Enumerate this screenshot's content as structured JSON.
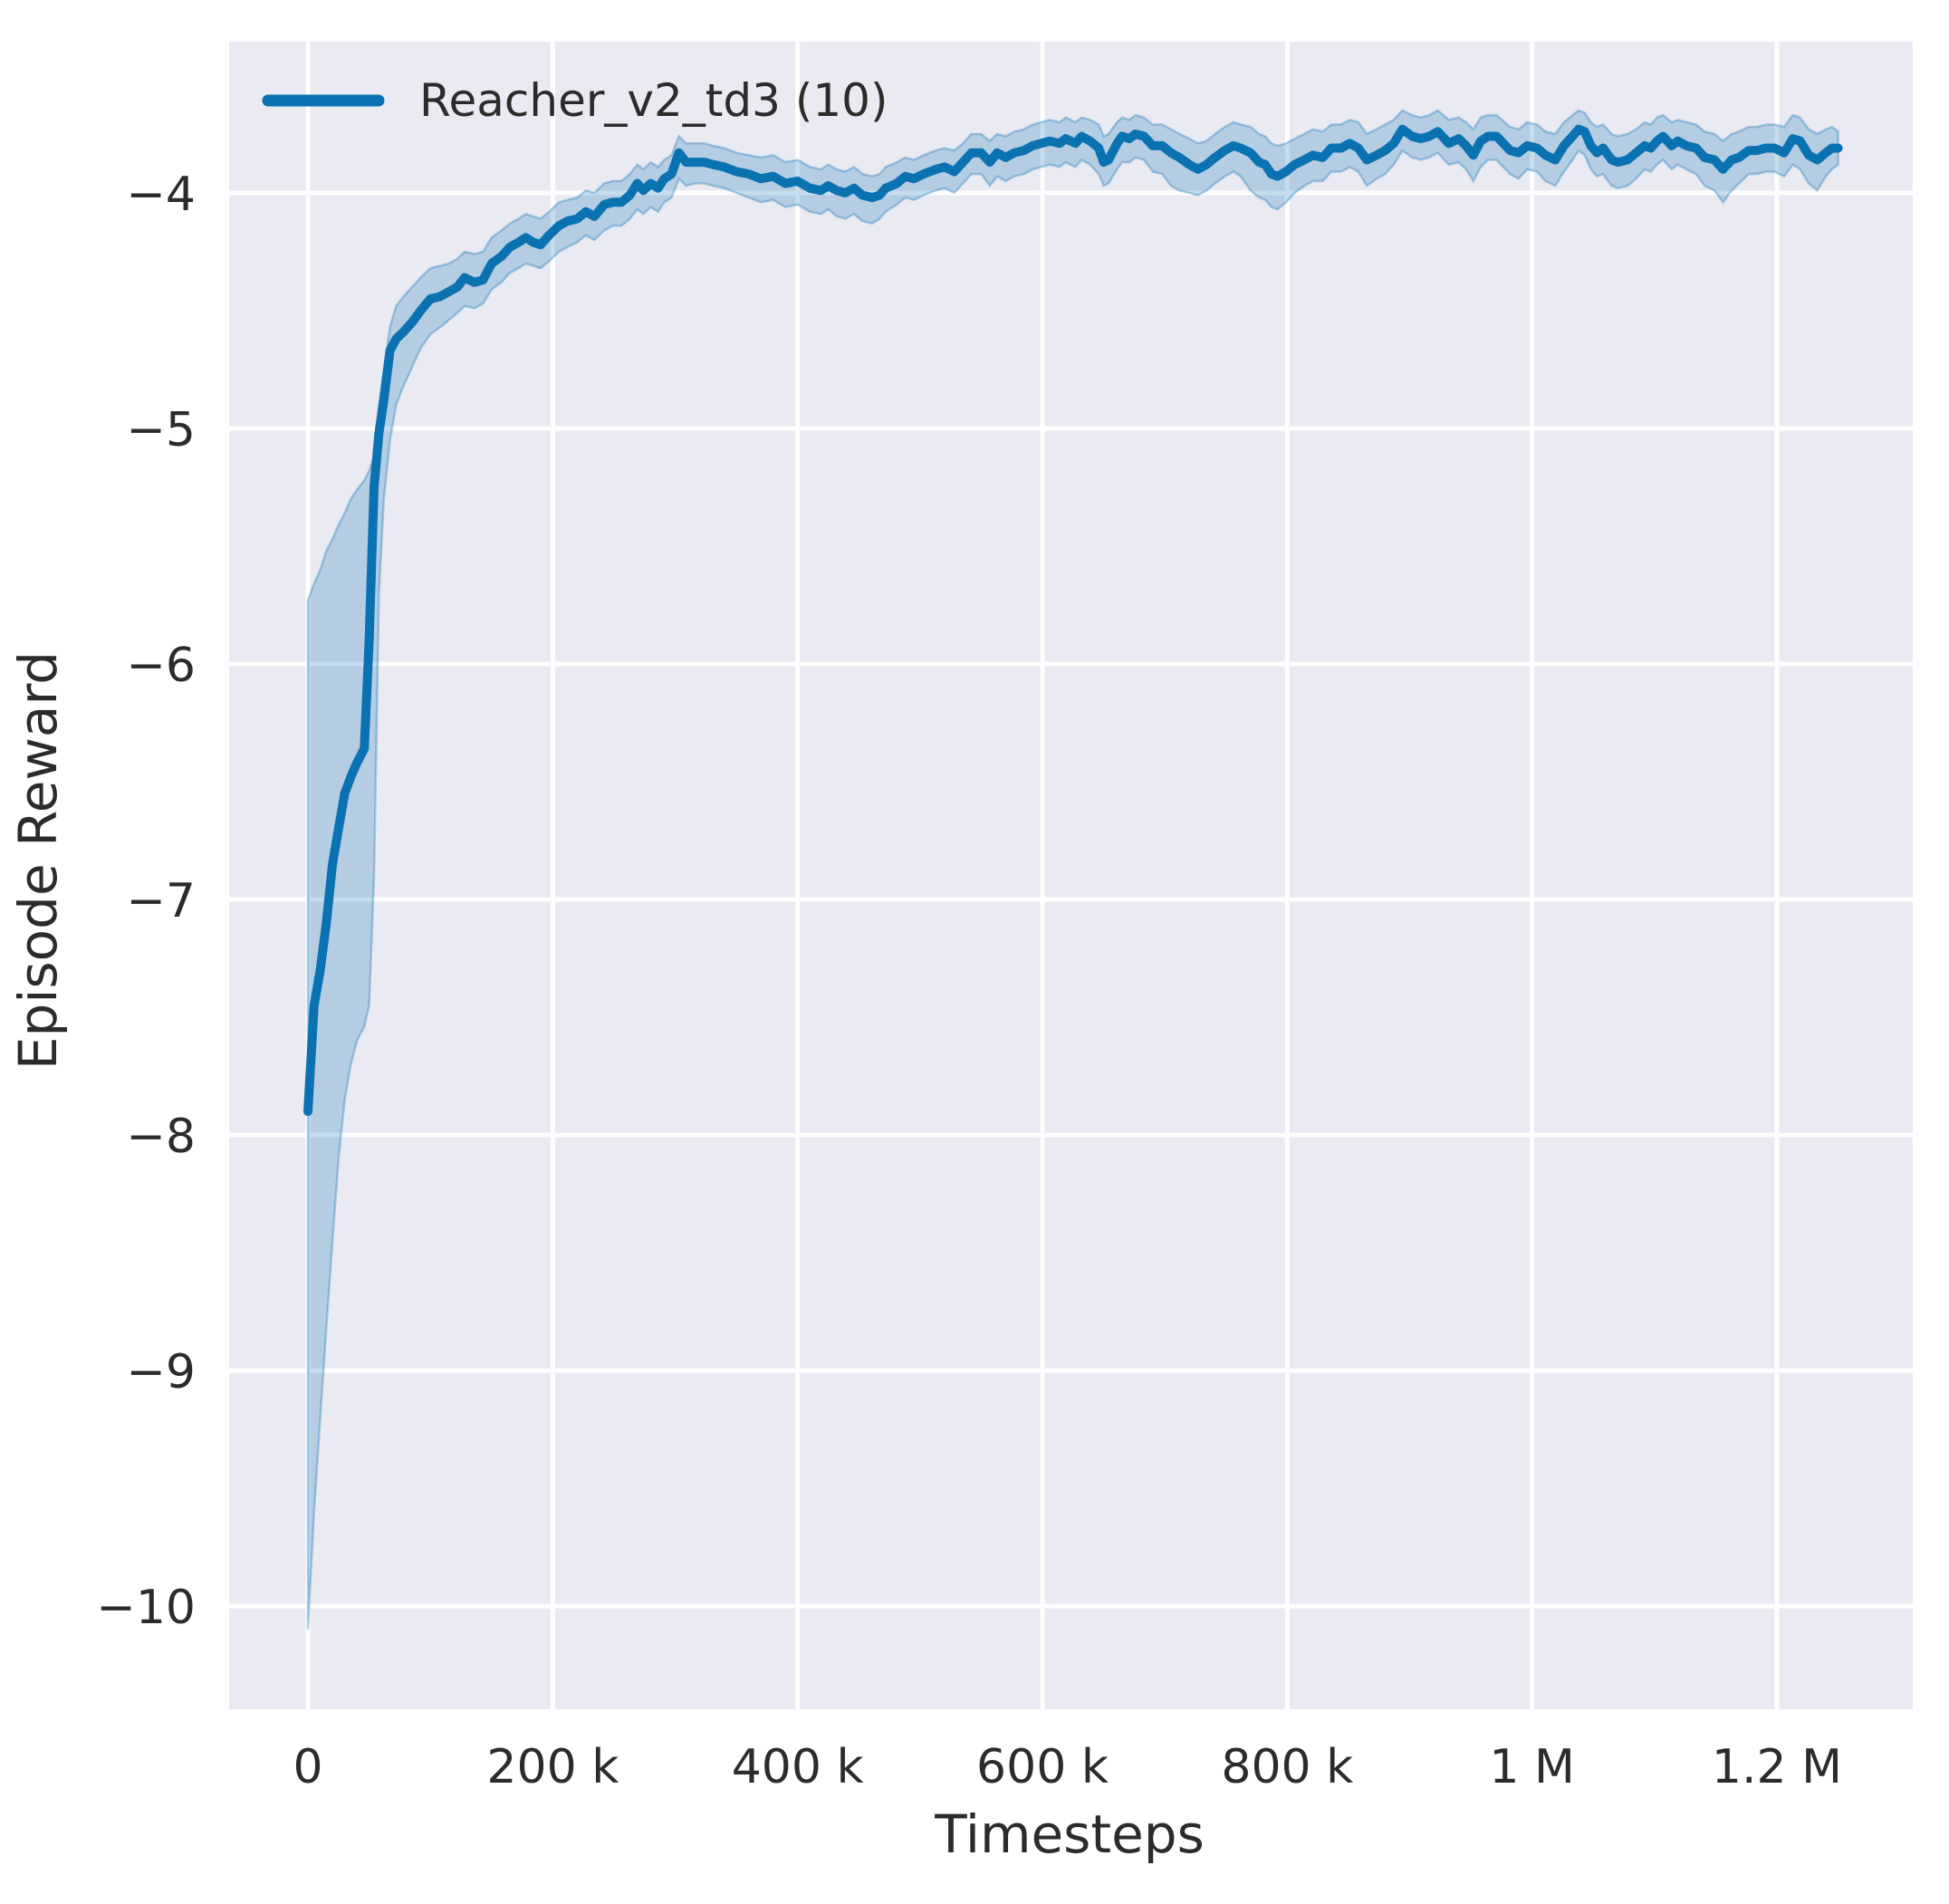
{
  "legend": {
    "label": "Reacher_v2_td3 (10)"
  },
  "axes": {
    "xlabel": "Timesteps",
    "ylabel": "Episode Reward",
    "x_ticks": [
      {
        "v": 0,
        "label": "0"
      },
      {
        "v": 200,
        "label": "200 k"
      },
      {
        "v": 400,
        "label": "400 k"
      },
      {
        "v": 600,
        "label": "600 k"
      },
      {
        "v": 800,
        "label": "800 k"
      },
      {
        "v": 1000,
        "label": "1 M"
      },
      {
        "v": 1200,
        "label": "1.2 M"
      }
    ],
    "y_ticks": [
      {
        "v": -4,
        "label": "−4"
      },
      {
        "v": -5,
        "label": "−5"
      },
      {
        "v": -6,
        "label": "−6"
      },
      {
        "v": -7,
        "label": "−7"
      },
      {
        "v": -8,
        "label": "−8"
      },
      {
        "v": -9,
        "label": "−9"
      },
      {
        "v": -10,
        "label": "−10"
      }
    ]
  },
  "colors": {
    "line": "#0b72b2",
    "band_fill": "rgba(11,114,178,0.24)",
    "band_edge": "rgba(11,114,178,0.32)",
    "plot_bg": "#eaeaf2",
    "grid": "#ffffff",
    "text": "#2b2b2b"
  },
  "chart_data": {
    "type": "line",
    "title": "",
    "xlabel": "Timesteps",
    "ylabel": "Episode Reward",
    "x_unit": "thousand timesteps",
    "xlim_k": [
      -64.4,
      1311
    ],
    "ylim": [
      -10.438,
      -3.358
    ],
    "grid": true,
    "legend_position": "upper-left",
    "series": [
      {
        "name": "Reacher_v2_td3 (10)",
        "x_k": [
          0,
          5,
          10,
          15,
          20,
          25,
          30,
          35,
          40,
          46,
          50,
          54,
          58,
          62,
          67,
          72,
          78,
          85,
          92,
          100,
          108,
          115,
          122,
          128,
          136,
          143,
          150,
          158,
          165,
          172,
          178,
          184,
          190,
          197,
          205,
          212,
          220,
          227,
          234,
          242,
          249,
          256,
          263,
          269,
          274,
          280,
          286,
          291,
          297,
          303,
          309,
          316,
          324,
          331,
          340,
          350,
          360,
          370,
          380,
          390,
          400,
          410,
          419,
          425,
          432,
          439,
          446,
          453,
          461,
          467,
          472,
          481,
          488,
          495,
          503,
          513,
          520,
          528,
          535,
          542,
          550,
          557,
          563,
          570,
          577,
          585,
          592,
          599,
          606,
          614,
          619,
          627,
          632,
          639,
          646,
          650,
          654,
          661,
          665,
          671,
          676,
          683,
          690,
          698,
          705,
          712,
          720,
          727,
          734,
          741,
          749,
          756,
          762,
          770,
          777,
          782,
          787,
          792,
          799,
          806,
          814,
          821,
          829,
          836,
          844,
          851,
          858,
          865,
          873,
          880,
          887,
          894,
          902,
          909,
          916,
          923,
          932,
          940,
          946,
          952,
          958,
          964,
          971,
          982,
          989,
          996,
          1004,
          1011,
          1019,
          1026,
          1033,
          1038,
          1043,
          1048,
          1053,
          1058,
          1065,
          1070,
          1078,
          1085,
          1092,
          1097,
          1102,
          1107,
          1114,
          1119,
          1126,
          1134,
          1141,
          1149,
          1156,
          1163,
          1169,
          1177,
          1184,
          1191,
          1198,
          1206,
          1213,
          1219,
          1226,
          1233,
          1240,
          1245,
          1250
        ],
        "mean": [
          -7.9,
          -7.45,
          -7.3,
          -7.1,
          -6.85,
          -6.7,
          -6.55,
          -6.48,
          -6.42,
          -6.36,
          -5.9,
          -5.25,
          -5.02,
          -4.88,
          -4.67,
          -4.62,
          -4.59,
          -4.55,
          -4.5,
          -4.45,
          -4.44,
          -4.42,
          -4.4,
          -4.36,
          -4.38,
          -4.37,
          -4.3,
          -4.27,
          -4.23,
          -4.21,
          -4.19,
          -4.21,
          -4.22,
          -4.18,
          -4.14,
          -4.12,
          -4.11,
          -4.08,
          -4.1,
          -4.05,
          -4.04,
          -4.04,
          -4.01,
          -3.96,
          -3.99,
          -3.96,
          -3.98,
          -3.94,
          -3.92,
          -3.83,
          -3.87,
          -3.87,
          -3.87,
          -3.88,
          -3.89,
          -3.91,
          -3.92,
          -3.94,
          -3.93,
          -3.96,
          -3.95,
          -3.98,
          -3.99,
          -3.97,
          -3.99,
          -4.0,
          -3.98,
          -4.01,
          -4.02,
          -4.01,
          -3.98,
          -3.96,
          -3.93,
          -3.94,
          -3.92,
          -3.9,
          -3.89,
          -3.91,
          -3.87,
          -3.83,
          -3.83,
          -3.87,
          -3.83,
          -3.85,
          -3.83,
          -3.82,
          -3.8,
          -3.79,
          -3.78,
          -3.79,
          -3.77,
          -3.79,
          -3.76,
          -3.78,
          -3.81,
          -3.87,
          -3.86,
          -3.79,
          -3.76,
          -3.77,
          -3.75,
          -3.76,
          -3.8,
          -3.8,
          -3.83,
          -3.85,
          -3.88,
          -3.9,
          -3.88,
          -3.85,
          -3.82,
          -3.8,
          -3.81,
          -3.83,
          -3.87,
          -3.88,
          -3.92,
          -3.93,
          -3.91,
          -3.88,
          -3.86,
          -3.84,
          -3.85,
          -3.81,
          -3.81,
          -3.79,
          -3.81,
          -3.86,
          -3.84,
          -3.82,
          -3.79,
          -3.73,
          -3.76,
          -3.77,
          -3.76,
          -3.74,
          -3.79,
          -3.77,
          -3.8,
          -3.84,
          -3.78,
          -3.76,
          -3.76,
          -3.82,
          -3.83,
          -3.8,
          -3.81,
          -3.84,
          -3.86,
          -3.8,
          -3.76,
          -3.73,
          -3.74,
          -3.8,
          -3.83,
          -3.81,
          -3.86,
          -3.87,
          -3.86,
          -3.83,
          -3.8,
          -3.81,
          -3.78,
          -3.76,
          -3.8,
          -3.78,
          -3.8,
          -3.81,
          -3.85,
          -3.86,
          -3.9,
          -3.86,
          -3.85,
          -3.82,
          -3.82,
          -3.81,
          -3.81,
          -3.83,
          -3.77,
          -3.78,
          -3.84,
          -3.86,
          -3.83,
          -3.81,
          -3.81
        ],
        "lower": [
          -10.1,
          -9.6,
          -9.2,
          -8.82,
          -8.45,
          -8.1,
          -7.85,
          -7.7,
          -7.6,
          -7.54,
          -7.45,
          -6.9,
          -5.7,
          -5.3,
          -5.05,
          -4.9,
          -4.82,
          -4.74,
          -4.66,
          -4.6,
          -4.57,
          -4.54,
          -4.51,
          -4.48,
          -4.49,
          -4.47,
          -4.41,
          -4.38,
          -4.34,
          -4.32,
          -4.3,
          -4.31,
          -4.32,
          -4.29,
          -4.25,
          -4.23,
          -4.21,
          -4.18,
          -4.2,
          -4.16,
          -4.14,
          -4.14,
          -4.11,
          -4.07,
          -4.09,
          -4.06,
          -4.08,
          -4.04,
          -4.02,
          -3.94,
          -3.97,
          -3.96,
          -3.96,
          -3.97,
          -3.98,
          -4.0,
          -4.02,
          -4.04,
          -4.03,
          -4.06,
          -4.05,
          -4.08,
          -4.09,
          -4.07,
          -4.1,
          -4.11,
          -4.09,
          -4.12,
          -4.13,
          -4.11,
          -4.08,
          -4.05,
          -4.02,
          -4.03,
          -4.01,
          -3.99,
          -3.98,
          -4.0,
          -3.96,
          -3.92,
          -3.92,
          -3.97,
          -3.93,
          -3.95,
          -3.93,
          -3.92,
          -3.9,
          -3.89,
          -3.88,
          -3.89,
          -3.87,
          -3.89,
          -3.86,
          -3.88,
          -3.92,
          -3.97,
          -3.96,
          -3.9,
          -3.87,
          -3.87,
          -3.85,
          -3.86,
          -3.91,
          -3.92,
          -3.97,
          -3.99,
          -4.0,
          -4.01,
          -3.99,
          -3.96,
          -3.93,
          -3.91,
          -3.93,
          -3.99,
          -4.02,
          -4.03,
          -4.06,
          -4.07,
          -4.04,
          -4.0,
          -3.97,
          -3.95,
          -3.95,
          -3.91,
          -3.91,
          -3.89,
          -3.91,
          -3.97,
          -3.94,
          -3.92,
          -3.88,
          -3.82,
          -3.85,
          -3.86,
          -3.85,
          -3.83,
          -3.88,
          -3.87,
          -3.9,
          -3.95,
          -3.89,
          -3.86,
          -3.86,
          -3.92,
          -3.94,
          -3.9,
          -3.91,
          -3.95,
          -3.97,
          -3.91,
          -3.86,
          -3.82,
          -3.84,
          -3.9,
          -3.93,
          -3.92,
          -3.97,
          -3.98,
          -3.97,
          -3.94,
          -3.9,
          -3.91,
          -3.88,
          -3.86,
          -3.9,
          -3.88,
          -3.9,
          -3.92,
          -3.97,
          -3.99,
          -4.04,
          -3.99,
          -3.96,
          -3.92,
          -3.92,
          -3.91,
          -3.91,
          -3.93,
          -3.88,
          -3.9,
          -3.96,
          -3.99,
          -3.93,
          -3.9,
          -3.88
        ],
        "upper": [
          -5.73,
          -5.66,
          -5.6,
          -5.52,
          -5.47,
          -5.41,
          -5.36,
          -5.3,
          -5.26,
          -5.22,
          -5.18,
          -5.12,
          -4.9,
          -4.75,
          -4.57,
          -4.48,
          -4.44,
          -4.4,
          -4.36,
          -4.32,
          -4.31,
          -4.3,
          -4.28,
          -4.25,
          -4.26,
          -4.25,
          -4.19,
          -4.16,
          -4.13,
          -4.11,
          -4.09,
          -4.1,
          -4.11,
          -4.08,
          -4.04,
          -4.03,
          -4.02,
          -3.99,
          -4.0,
          -3.96,
          -3.95,
          -3.95,
          -3.92,
          -3.88,
          -3.9,
          -3.87,
          -3.89,
          -3.86,
          -3.84,
          -3.76,
          -3.79,
          -3.79,
          -3.79,
          -3.8,
          -3.81,
          -3.83,
          -3.84,
          -3.85,
          -3.84,
          -3.87,
          -3.86,
          -3.89,
          -3.9,
          -3.88,
          -3.9,
          -3.91,
          -3.89,
          -3.92,
          -3.93,
          -3.92,
          -3.89,
          -3.87,
          -3.85,
          -3.86,
          -3.84,
          -3.82,
          -3.81,
          -3.82,
          -3.79,
          -3.75,
          -3.75,
          -3.78,
          -3.75,
          -3.76,
          -3.74,
          -3.73,
          -3.71,
          -3.7,
          -3.69,
          -3.7,
          -3.68,
          -3.7,
          -3.68,
          -3.69,
          -3.71,
          -3.76,
          -3.75,
          -3.7,
          -3.68,
          -3.69,
          -3.67,
          -3.68,
          -3.71,
          -3.71,
          -3.73,
          -3.75,
          -3.77,
          -3.79,
          -3.78,
          -3.75,
          -3.72,
          -3.7,
          -3.71,
          -3.72,
          -3.75,
          -3.76,
          -3.79,
          -3.8,
          -3.79,
          -3.77,
          -3.75,
          -3.73,
          -3.74,
          -3.71,
          -3.71,
          -3.69,
          -3.7,
          -3.75,
          -3.73,
          -3.71,
          -3.69,
          -3.65,
          -3.67,
          -3.68,
          -3.67,
          -3.65,
          -3.69,
          -3.68,
          -3.7,
          -3.73,
          -3.68,
          -3.67,
          -3.67,
          -3.72,
          -3.73,
          -3.7,
          -3.71,
          -3.74,
          -3.75,
          -3.7,
          -3.67,
          -3.65,
          -3.66,
          -3.7,
          -3.72,
          -3.71,
          -3.75,
          -3.76,
          -3.75,
          -3.73,
          -3.7,
          -3.71,
          -3.68,
          -3.67,
          -3.7,
          -3.69,
          -3.7,
          -3.71,
          -3.74,
          -3.75,
          -3.78,
          -3.75,
          -3.74,
          -3.72,
          -3.72,
          -3.71,
          -3.71,
          -3.72,
          -3.67,
          -3.68,
          -3.73,
          -3.75,
          -3.73,
          -3.72,
          -3.74
        ]
      }
    ]
  }
}
